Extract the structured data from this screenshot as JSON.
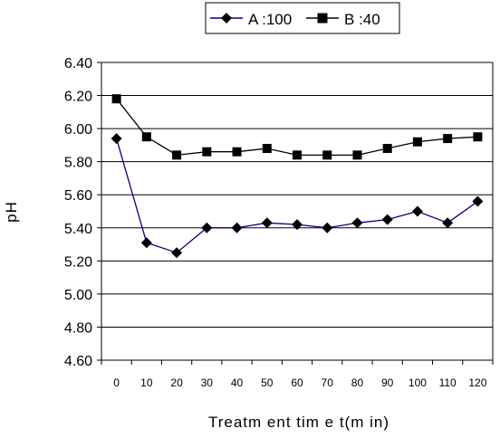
{
  "chart_data": {
    "type": "line",
    "title": "",
    "xlabel": "Treatm ent tim e t(m in)",
    "ylabel": "pH",
    "categories": [
      "0",
      "10",
      "20",
      "30",
      "40",
      "50",
      "60",
      "70",
      "80",
      "90",
      "100",
      "110",
      "120"
    ],
    "ylim": [
      4.6,
      6.4
    ],
    "yticks": [
      "6.40",
      "6.20",
      "6.00",
      "5.80",
      "5.60",
      "5.40",
      "5.20",
      "5.00",
      "4.80",
      "4.60"
    ],
    "grid": "horizontal",
    "legend_position": "top",
    "series": [
      {
        "name": "A :100",
        "marker": "diamond",
        "line_color": "#000080",
        "marker_color": "#000000",
        "values": [
          5.94,
          5.31,
          5.25,
          5.4,
          5.4,
          5.43,
          5.42,
          5.4,
          5.43,
          5.45,
          5.5,
          5.43,
          5.56
        ]
      },
      {
        "name": "B :40",
        "marker": "square",
        "line_color": "#000000",
        "marker_color": "#000000",
        "values": [
          6.18,
          5.95,
          5.84,
          5.86,
          5.86,
          5.88,
          5.84,
          5.84,
          5.84,
          5.88,
          5.92,
          5.94,
          5.95
        ]
      }
    ]
  }
}
